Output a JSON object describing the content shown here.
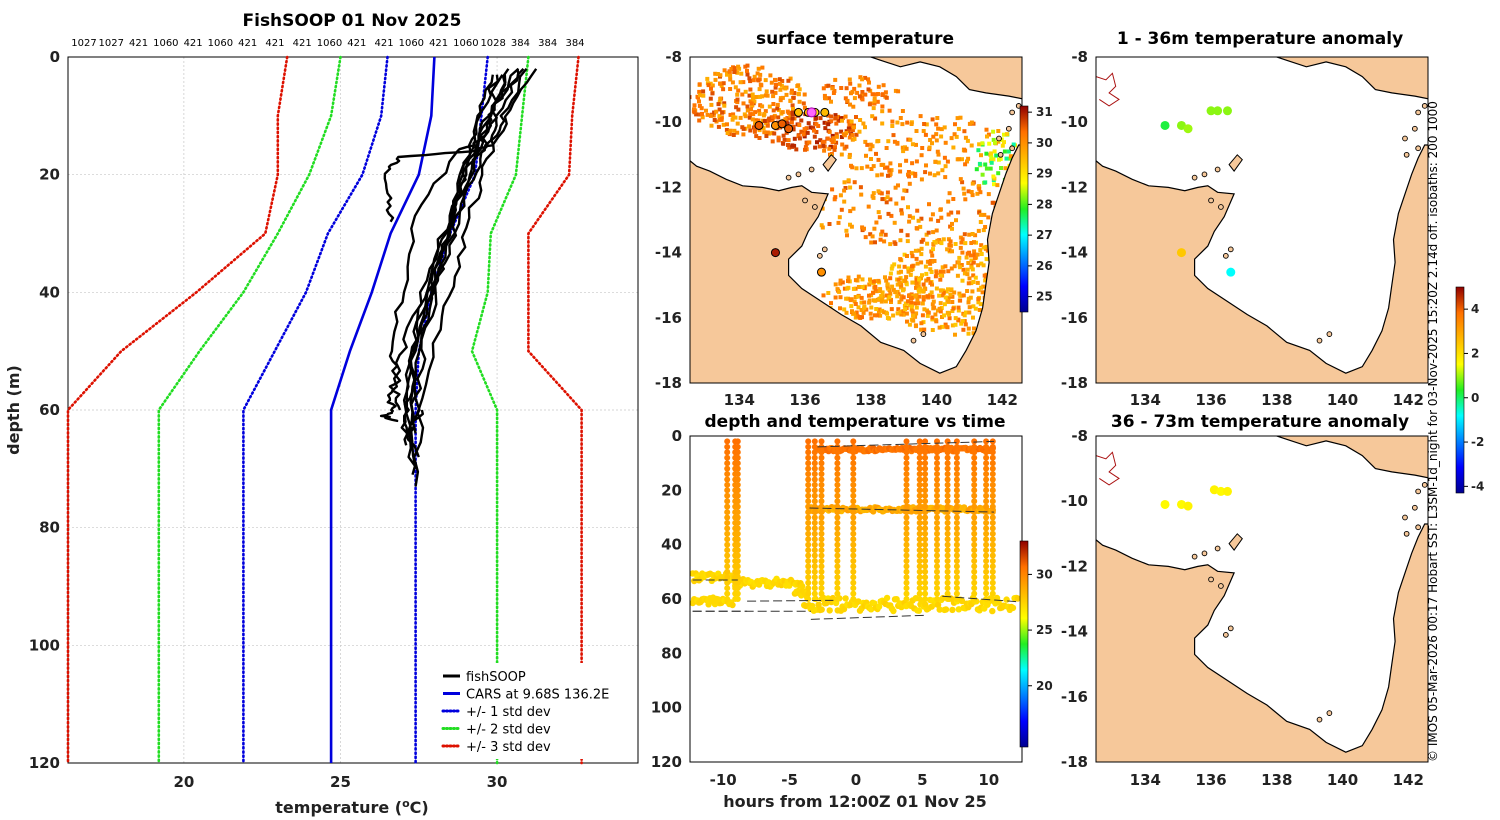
{
  "title": "FishSOOP 01 Nov 2025",
  "credit": "© IMOS 05-Mar-2026 00:17 Hobart SST: L3SM-1d_night for 03-Nov-2025 15:20Z 2.14d off. isobaths: 200  1000",
  "colors": {
    "land": "#f6c89a",
    "black": "#000000",
    "blue": "#0000dd",
    "green": "#22dd22",
    "red": "#dd1100"
  },
  "chart_data": [
    {
      "id": "profile",
      "type": "line",
      "title": "FishSOOP 01 Nov 2025",
      "xlabel": "temperature (",
      "xlabel_unit": "o",
      "xlabel_tail": "C)",
      "ylabel": "depth (m)",
      "xlim": [
        16.3,
        34.5
      ],
      "ylim": [
        120,
        0
      ],
      "xticks": [
        20,
        25,
        30
      ],
      "yticks": [
        0,
        20,
        40,
        60,
        80,
        100,
        120
      ],
      "top_labels": [
        "1027",
        "1027",
        "421",
        "1060",
        "421",
        "1060",
        "421",
        "421",
        "421",
        "1060",
        "421",
        "421",
        "1060",
        "421",
        "1060",
        "1028",
        "384",
        "384",
        "384"
      ],
      "legend": [
        {
          "label": "fishSOOP",
          "color": "#000000",
          "style": "solid"
        },
        {
          "label": "CARS at 9.68S 136.2E",
          "color": "#0000dd",
          "style": "solid"
        },
        {
          "label": "+/- 1 std dev",
          "color": "#0000dd",
          "style": "dotted"
        },
        {
          "label": "+/- 2 std dev",
          "color": "#22dd22",
          "style": "dotted"
        },
        {
          "label": "+/- 3 std dev",
          "color": "#dd1100",
          "style": "dotted"
        }
      ],
      "cars_depth": [
        0,
        10,
        20,
        30,
        40,
        50,
        60,
        120
      ],
      "series": [
        {
          "name": "CARS mean",
          "color": "#0000dd",
          "dash": "",
          "x": [
            28.0,
            27.9,
            27.5,
            26.6,
            26.0,
            25.3,
            24.7,
            24.7
          ]
        },
        {
          "name": "+1 std",
          "color": "#0000dd",
          "dash": "dot",
          "x": [
            29.7,
            29.5,
            29.3,
            28.5,
            27.9,
            27.5,
            27.4,
            27.4
          ]
        },
        {
          "name": "-1 std",
          "color": "#0000dd",
          "dash": "dot",
          "x": [
            26.5,
            26.3,
            25.7,
            24.6,
            23.9,
            22.9,
            21.9,
            21.9
          ]
        },
        {
          "name": "+2 std",
          "color": "#22dd22",
          "dash": "dot",
          "x": [
            31.0,
            30.8,
            30.6,
            29.8,
            29.7,
            29.2,
            30.0,
            30.0
          ]
        },
        {
          "name": "-2 std",
          "color": "#22dd22",
          "dash": "dot",
          "x": [
            25.0,
            24.7,
            24.0,
            23.0,
            21.9,
            20.5,
            19.2,
            19.2
          ]
        },
        {
          "name": "+3 std",
          "color": "#dd1100",
          "dash": "dot",
          "x": [
            32.6,
            32.4,
            32.3,
            31.0,
            31.0,
            31.0,
            32.7,
            32.7
          ]
        },
        {
          "name": "-3 std",
          "color": "#dd1100",
          "dash": "dot",
          "x": [
            23.3,
            23.0,
            23.0,
            22.6,
            20.4,
            18.0,
            16.3,
            16.3
          ]
        }
      ],
      "casts": [
        {
          "x": [
            30.9,
            30.2,
            29.8,
            29.2,
            26.9,
            26.5,
            26.5,
            26.6
          ],
          "y": [
            2,
            10,
            15,
            16,
            17,
            19,
            24,
            28
          ]
        },
        {
          "x": [
            30.6,
            29.9,
            29.5,
            28.8,
            27.4,
            27.0,
            26.6,
            26.8,
            26.5,
            26.7,
            26.4,
            26.8
          ],
          "y": [
            2,
            9,
            14,
            16,
            27,
            40,
            50,
            55,
            58,
            60,
            61,
            62
          ]
        },
        {
          "x": [
            30.7,
            30.1,
            29.6,
            29.1,
            28.6,
            27.8,
            27.3,
            27.2,
            27.3
          ],
          "y": [
            2,
            10,
            15,
            20,
            30,
            42,
            52,
            62,
            71
          ]
        },
        {
          "x": [
            30.4,
            29.9,
            29.4,
            28.8,
            28.3,
            27.6,
            27.1,
            27.4
          ],
          "y": [
            2,
            10,
            15,
            22,
            32,
            44,
            56,
            70
          ]
        },
        {
          "x": [
            31.2,
            30.4,
            29.8,
            29.3,
            28.8,
            28.2,
            27.6,
            27.4
          ],
          "y": [
            2,
            9,
            16,
            24,
            34,
            44,
            58,
            73
          ]
        },
        {
          "x": [
            30.3,
            29.6,
            29.3,
            28.6,
            28.0,
            27.4,
            27.3,
            27.0,
            27.5
          ],
          "y": [
            3,
            11,
            18,
            26,
            36,
            46,
            56,
            62,
            68
          ]
        },
        {
          "x": [
            30.1,
            29.6,
            28.9,
            28.4,
            27.9,
            27.2,
            27.0,
            27.1
          ],
          "y": [
            3,
            12,
            20,
            30,
            40,
            50,
            60,
            66
          ]
        },
        {
          "x": [
            30.8,
            30.0,
            29.6,
            29.1,
            28.5,
            27.9,
            27.5,
            27.4
          ],
          "y": [
            2,
            8,
            15,
            22,
            32,
            41,
            52,
            64
          ]
        },
        {
          "x": [
            30.0,
            29.5,
            29.0,
            28.6,
            28.2,
            27.7,
            27.4,
            27.2,
            27.6
          ],
          "y": [
            3,
            10,
            18,
            28,
            36,
            48,
            58,
            64,
            60
          ]
        },
        {
          "x": [
            29.8,
            29.4,
            29.0,
            28.5,
            27.9,
            27.1,
            26.7,
            26.9
          ],
          "y": [
            3,
            11,
            17,
            26,
            36,
            48,
            56,
            60
          ]
        }
      ]
    },
    {
      "id": "sst",
      "type": "heatmap",
      "title": "surface temperature",
      "xlim": [
        132.5,
        142.6
      ],
      "ylim": [
        -18,
        -8
      ],
      "xticks": [
        134,
        136,
        138,
        140,
        142
      ],
      "yticks": [
        -8,
        -10,
        -12,
        -14,
        -16,
        -18
      ],
      "colorbar": {
        "min": 24.5,
        "max": 31.2,
        "ticks": [
          25,
          26,
          27,
          28,
          29,
          30,
          31
        ]
      },
      "stations": [
        {
          "lon": 135.8,
          "lat": -9.7,
          "v": 29.5
        },
        {
          "lon": 136.1,
          "lat": -9.7,
          "v": 29.5
        },
        {
          "lon": 136.3,
          "lat": -9.7,
          "v": 29.0
        },
        {
          "lon": 136.6,
          "lat": -9.7,
          "v": 29.5
        },
        {
          "lon": 134.6,
          "lat": -10.1,
          "v": 30.5
        },
        {
          "lon": 135.1,
          "lat": -10.1,
          "v": 30.0
        },
        {
          "lon": 135.5,
          "lat": -10.2,
          "v": 30.5
        },
        {
          "lon": 135.3,
          "lat": -10.05,
          "v": 30.5
        },
        {
          "lon": 135.1,
          "lat": -14.0,
          "v": 31.0
        },
        {
          "lon": 136.5,
          "lat": -14.6,
          "v": 30.0
        }
      ]
    },
    {
      "id": "timedepth",
      "type": "scatter",
      "title": "depth and temperature vs time",
      "xlabel": "hours from 12:00Z 01 Nov 25",
      "xlim": [
        -12.5,
        12.5
      ],
      "ylim": [
        120,
        0
      ],
      "xticks": [
        -10,
        -5,
        0,
        5,
        10
      ],
      "yticks": [
        0,
        20,
        40,
        60,
        80,
        100,
        120
      ],
      "colorbar": {
        "min": 14.5,
        "max": 33.0,
        "ticks": [
          20,
          25,
          30
        ]
      },
      "drops": [
        -9.7,
        -9.1,
        -8.9,
        -3.6,
        -3.1,
        -2.6,
        -1.4,
        -0.2,
        3.8,
        4.8,
        5.2,
        6.1,
        6.9,
        7.6,
        8.9,
        9.8,
        10.3
      ]
    },
    {
      "id": "anom1",
      "type": "scatter",
      "title": "1 - 36m temperature anomaly",
      "xlim": [
        132.5,
        142.6
      ],
      "ylim": [
        -18,
        -8
      ],
      "xticks": [
        134,
        136,
        138,
        140,
        142
      ],
      "yticks": [
        -8,
        -10,
        -12,
        -14,
        -16,
        -18
      ],
      "colorbar": {
        "min": -4.3,
        "max": 5.0,
        "ticks": [
          -4,
          -2,
          0,
          2,
          4
        ]
      },
      "points": [
        {
          "lon": 134.6,
          "lat": -10.1,
          "v": 0.2
        },
        {
          "lon": 135.1,
          "lat": -10.1,
          "v": 0.9
        },
        {
          "lon": 135.3,
          "lat": -10.2,
          "v": 1.0
        },
        {
          "lon": 136.0,
          "lat": -9.65,
          "v": 0.9
        },
        {
          "lon": 136.2,
          "lat": -9.65,
          "v": 0.9
        },
        {
          "lon": 136.5,
          "lat": -9.65,
          "v": 0.9
        },
        {
          "lon": 135.1,
          "lat": -14.0,
          "v": 2.4
        },
        {
          "lon": 136.6,
          "lat": -14.6,
          "v": -0.8
        }
      ]
    },
    {
      "id": "anom2",
      "type": "scatter",
      "title": "36 - 73m temperature anomaly",
      "xlim": [
        132.5,
        142.6
      ],
      "ylim": [
        -18,
        -8
      ],
      "xticks": [
        134,
        136,
        138,
        140,
        142
      ],
      "yticks": [
        -8,
        -10,
        -12,
        -14,
        -16,
        -18
      ],
      "points": [
        {
          "lon": 134.6,
          "lat": -10.1,
          "v": 1.6
        },
        {
          "lon": 135.1,
          "lat": -10.1,
          "v": 1.6
        },
        {
          "lon": 135.3,
          "lat": -10.15,
          "v": 1.7
        },
        {
          "lon": 136.1,
          "lat": -9.65,
          "v": 1.7
        },
        {
          "lon": 136.3,
          "lat": -9.7,
          "v": 1.6
        },
        {
          "lon": 136.5,
          "lat": -9.7,
          "v": 1.7
        }
      ]
    }
  ]
}
